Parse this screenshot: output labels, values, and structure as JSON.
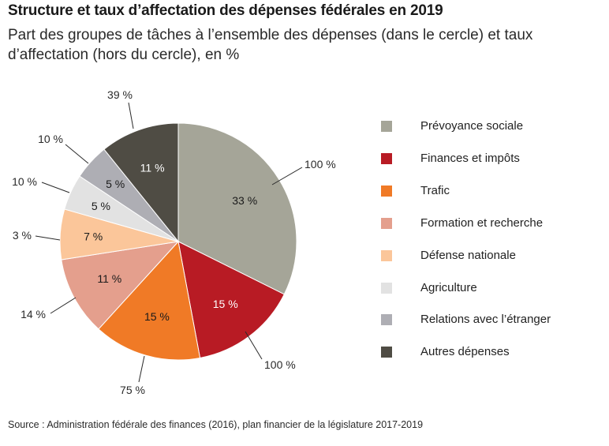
{
  "title": "Structure et taux d’affectation des dépenses fédérales en 2019",
  "subtitle": "Part des groupes de tâches à l’ensemble des dépenses (dans le cercle) et taux d’affectation (hors du cercle), en %",
  "source": "Source : Administration fédérale des finances (2016), plan financier de la législature 2017-2019",
  "chart_data": {
    "type": "pie",
    "title": "Structure et taux d’affectation des dépenses fédérales en 2019",
    "start": "12 o'clock, clockwise",
    "legend_position": "right",
    "slices": [
      {
        "name": "Prévoyance sociale",
        "share": 33,
        "share_label": "33 %",
        "affectation": 100,
        "affectation_label": "100 %",
        "color": "#a5a598"
      },
      {
        "name": "Finances et impôts",
        "share": 15,
        "share_label": "15 %",
        "affectation": 100,
        "affectation_label": "100 %",
        "color": "#b81b24"
      },
      {
        "name": "Trafic",
        "share": 15,
        "share_label": "15 %",
        "affectation": 75,
        "affectation_label": "75 %",
        "color": "#f07a26"
      },
      {
        "name": "Formation et recherche",
        "share": 11,
        "share_label": "11 %",
        "affectation": 14,
        "affectation_label": "14 %",
        "color": "#e49f8d"
      },
      {
        "name": "Défense nationale",
        "share": 7,
        "share_label": "7 %",
        "affectation": 3,
        "affectation_label": "3 %",
        "color": "#fbc69a"
      },
      {
        "name": "Agriculture",
        "share": 5,
        "share_label": "5 %",
        "affectation": 10,
        "affectation_label": "10 %",
        "color": "#e2e2e2"
      },
      {
        "name": "Relations avec l’étranger",
        "share": 5,
        "share_label": "5 %",
        "affectation": 10,
        "affectation_label": "10 %",
        "color": "#aeaeb4"
      },
      {
        "name": "Autres dépenses",
        "share": 11,
        "share_label": "11 %",
        "affectation": 39,
        "affectation_label": "39 %",
        "color": "#4f4c44"
      }
    ]
  }
}
